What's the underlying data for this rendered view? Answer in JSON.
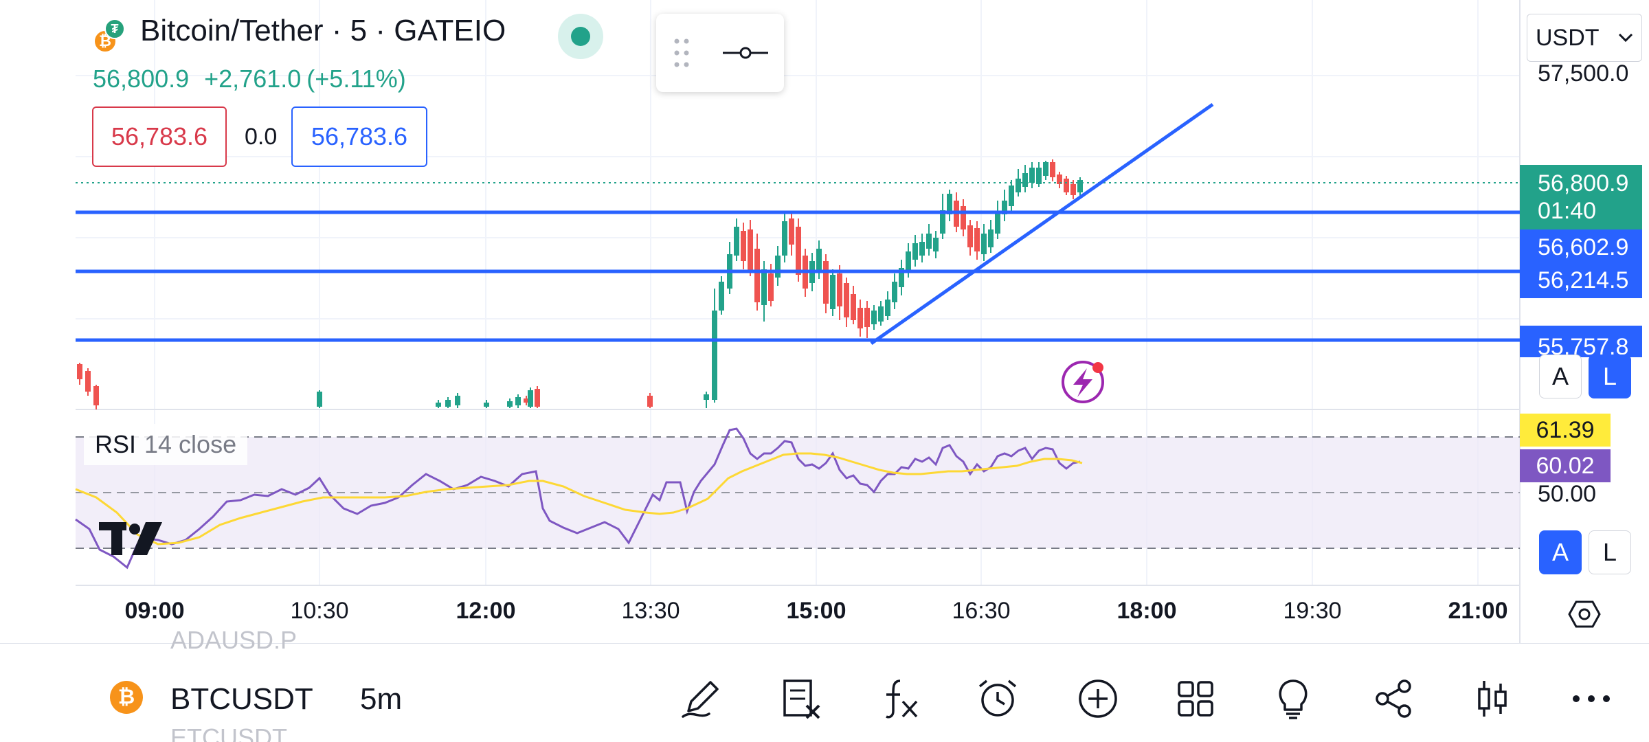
{
  "header": {
    "symbol_title": "Bitcoin/Tether · 5 · GATEIO",
    "btc_glyph": "₿",
    "usdt_glyph": "₮",
    "last_price": "56,800.9",
    "change": "+2,761.0",
    "change_pct": "(+5.11%)"
  },
  "bidask": {
    "bid": "56,783.6",
    "spread": "0.0",
    "ask": "56,783.6"
  },
  "drawing_toolbar": {
    "handle_icon": "drag-handle-icon",
    "tool_icon": "horizontal-line-tool-icon"
  },
  "currency_select": {
    "value": "USDT",
    "icon": "chevron-down-icon"
  },
  "price_axis": {
    "top_label": "57,500.0",
    "current_price": "56,800.9",
    "countdown": "01:40",
    "level_1": "56,602.9",
    "level_2": "56,214.5",
    "level_3": "55,757.8",
    "auto_label": "A",
    "log_label": "L"
  },
  "rsi": {
    "name": "RSI",
    "params": "14 close",
    "value_ma": "61.39",
    "value_rsi": "60.02",
    "mid_label": "50.00",
    "auto_label": "A",
    "log_label": "L",
    "color_line": "#7e57c2",
    "color_ma": "#fdd835"
  },
  "time_axis": {
    "labels": [
      {
        "text": "09:00",
        "bold": true
      },
      {
        "text": "10:30",
        "bold": false
      },
      {
        "text": "12:00",
        "bold": true
      },
      {
        "text": "13:30",
        "bold": false
      },
      {
        "text": "15:00",
        "bold": true
      },
      {
        "text": "16:30",
        "bold": false
      },
      {
        "text": "18:00",
        "bold": true
      },
      {
        "text": "19:30",
        "bold": false
      },
      {
        "text": "21:00",
        "bold": true
      }
    ],
    "settings_icon": "hexagon-settings-icon"
  },
  "bottom_bar": {
    "ghost_prev": "ADAUSD.P",
    "symbol": "BTCUSDT",
    "ghost_next": "ETCUSDT",
    "interval": "5m",
    "icons": [
      "pencil-icon",
      "clear-drawings-icon",
      "indicators-fx-icon",
      "alarm-clock-icon",
      "plus-circle-icon",
      "layout-grid-icon",
      "lightbulb-icon",
      "share-icon",
      "candles-icon",
      "more-icon"
    ]
  },
  "colors": {
    "up": "#22a28a",
    "down": "#ef5350",
    "line": "#2962ff",
    "accent_purple": "#9c27b0"
  }
}
